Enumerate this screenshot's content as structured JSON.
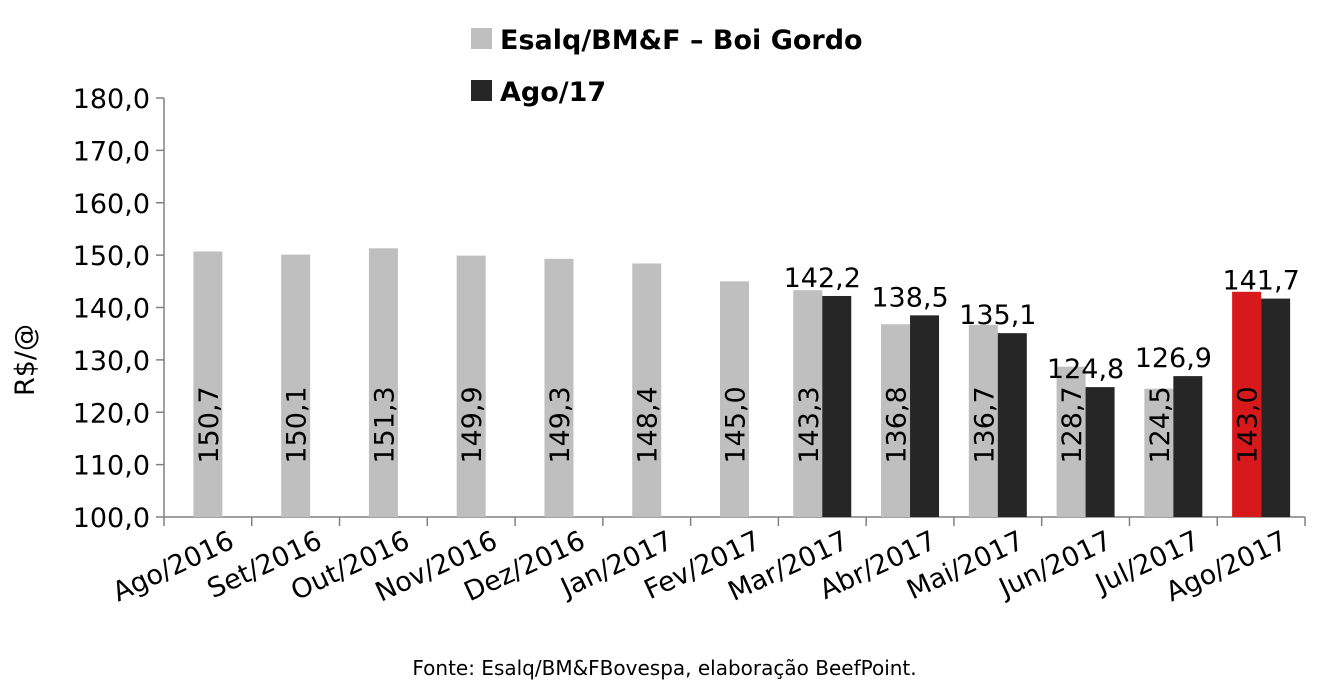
{
  "chart_data": {
    "type": "bar",
    "categories": [
      "Ago/2016",
      "Set/2016",
      "Out/2016",
      "Nov/2016",
      "Dez/2016",
      "Jan/2017",
      "Fev/2017",
      "Mar/2017",
      "Abr/2017",
      "Mai/2017",
      "Jun/2017",
      "Jul/2017",
      "Ago/2017"
    ],
    "series": [
      {
        "name": "Esalq/BM&F – Boi Gordo",
        "color": "#bfbfbf",
        "values": [
          150.7,
          150.1,
          151.3,
          149.9,
          149.3,
          148.4,
          145.0,
          143.3,
          136.8,
          136.7,
          128.7,
          124.5,
          143.0
        ],
        "labels": [
          "150,7",
          "150,1",
          "151,3",
          "149,9",
          "149,3",
          "148,4",
          "145,0",
          "143,3",
          "136,8",
          "136,7",
          "128,7",
          "124,5",
          "143,0"
        ]
      },
      {
        "name": "Ago/17",
        "color": "#262626",
        "values": [
          null,
          null,
          null,
          null,
          null,
          null,
          null,
          142.2,
          138.5,
          135.1,
          124.8,
          126.9,
          141.7
        ],
        "labels": [
          "",
          "",
          "",
          "",
          "",
          "",
          "",
          "142,2",
          "138,5",
          "135,1",
          "124,8",
          "126,9",
          "141,7"
        ]
      }
    ],
    "highlight": {
      "category_index": 12,
      "series_index": 0,
      "color": "#d7191c"
    },
    "ylabel": "R$/@",
    "ylim": [
      100,
      180
    ],
    "yticks": [
      100,
      110,
      120,
      130,
      140,
      150,
      160,
      170,
      180
    ],
    "ytick_labels": [
      "100,0",
      "110,0",
      "120,0",
      "130,0",
      "140,0",
      "150,0",
      "160,0",
      "170,0",
      "180,0"
    ],
    "grid": false,
    "legend_position": "top"
  },
  "source": "Fonte: Esalq/BM&FBovespa, elaboração BeefPoint."
}
